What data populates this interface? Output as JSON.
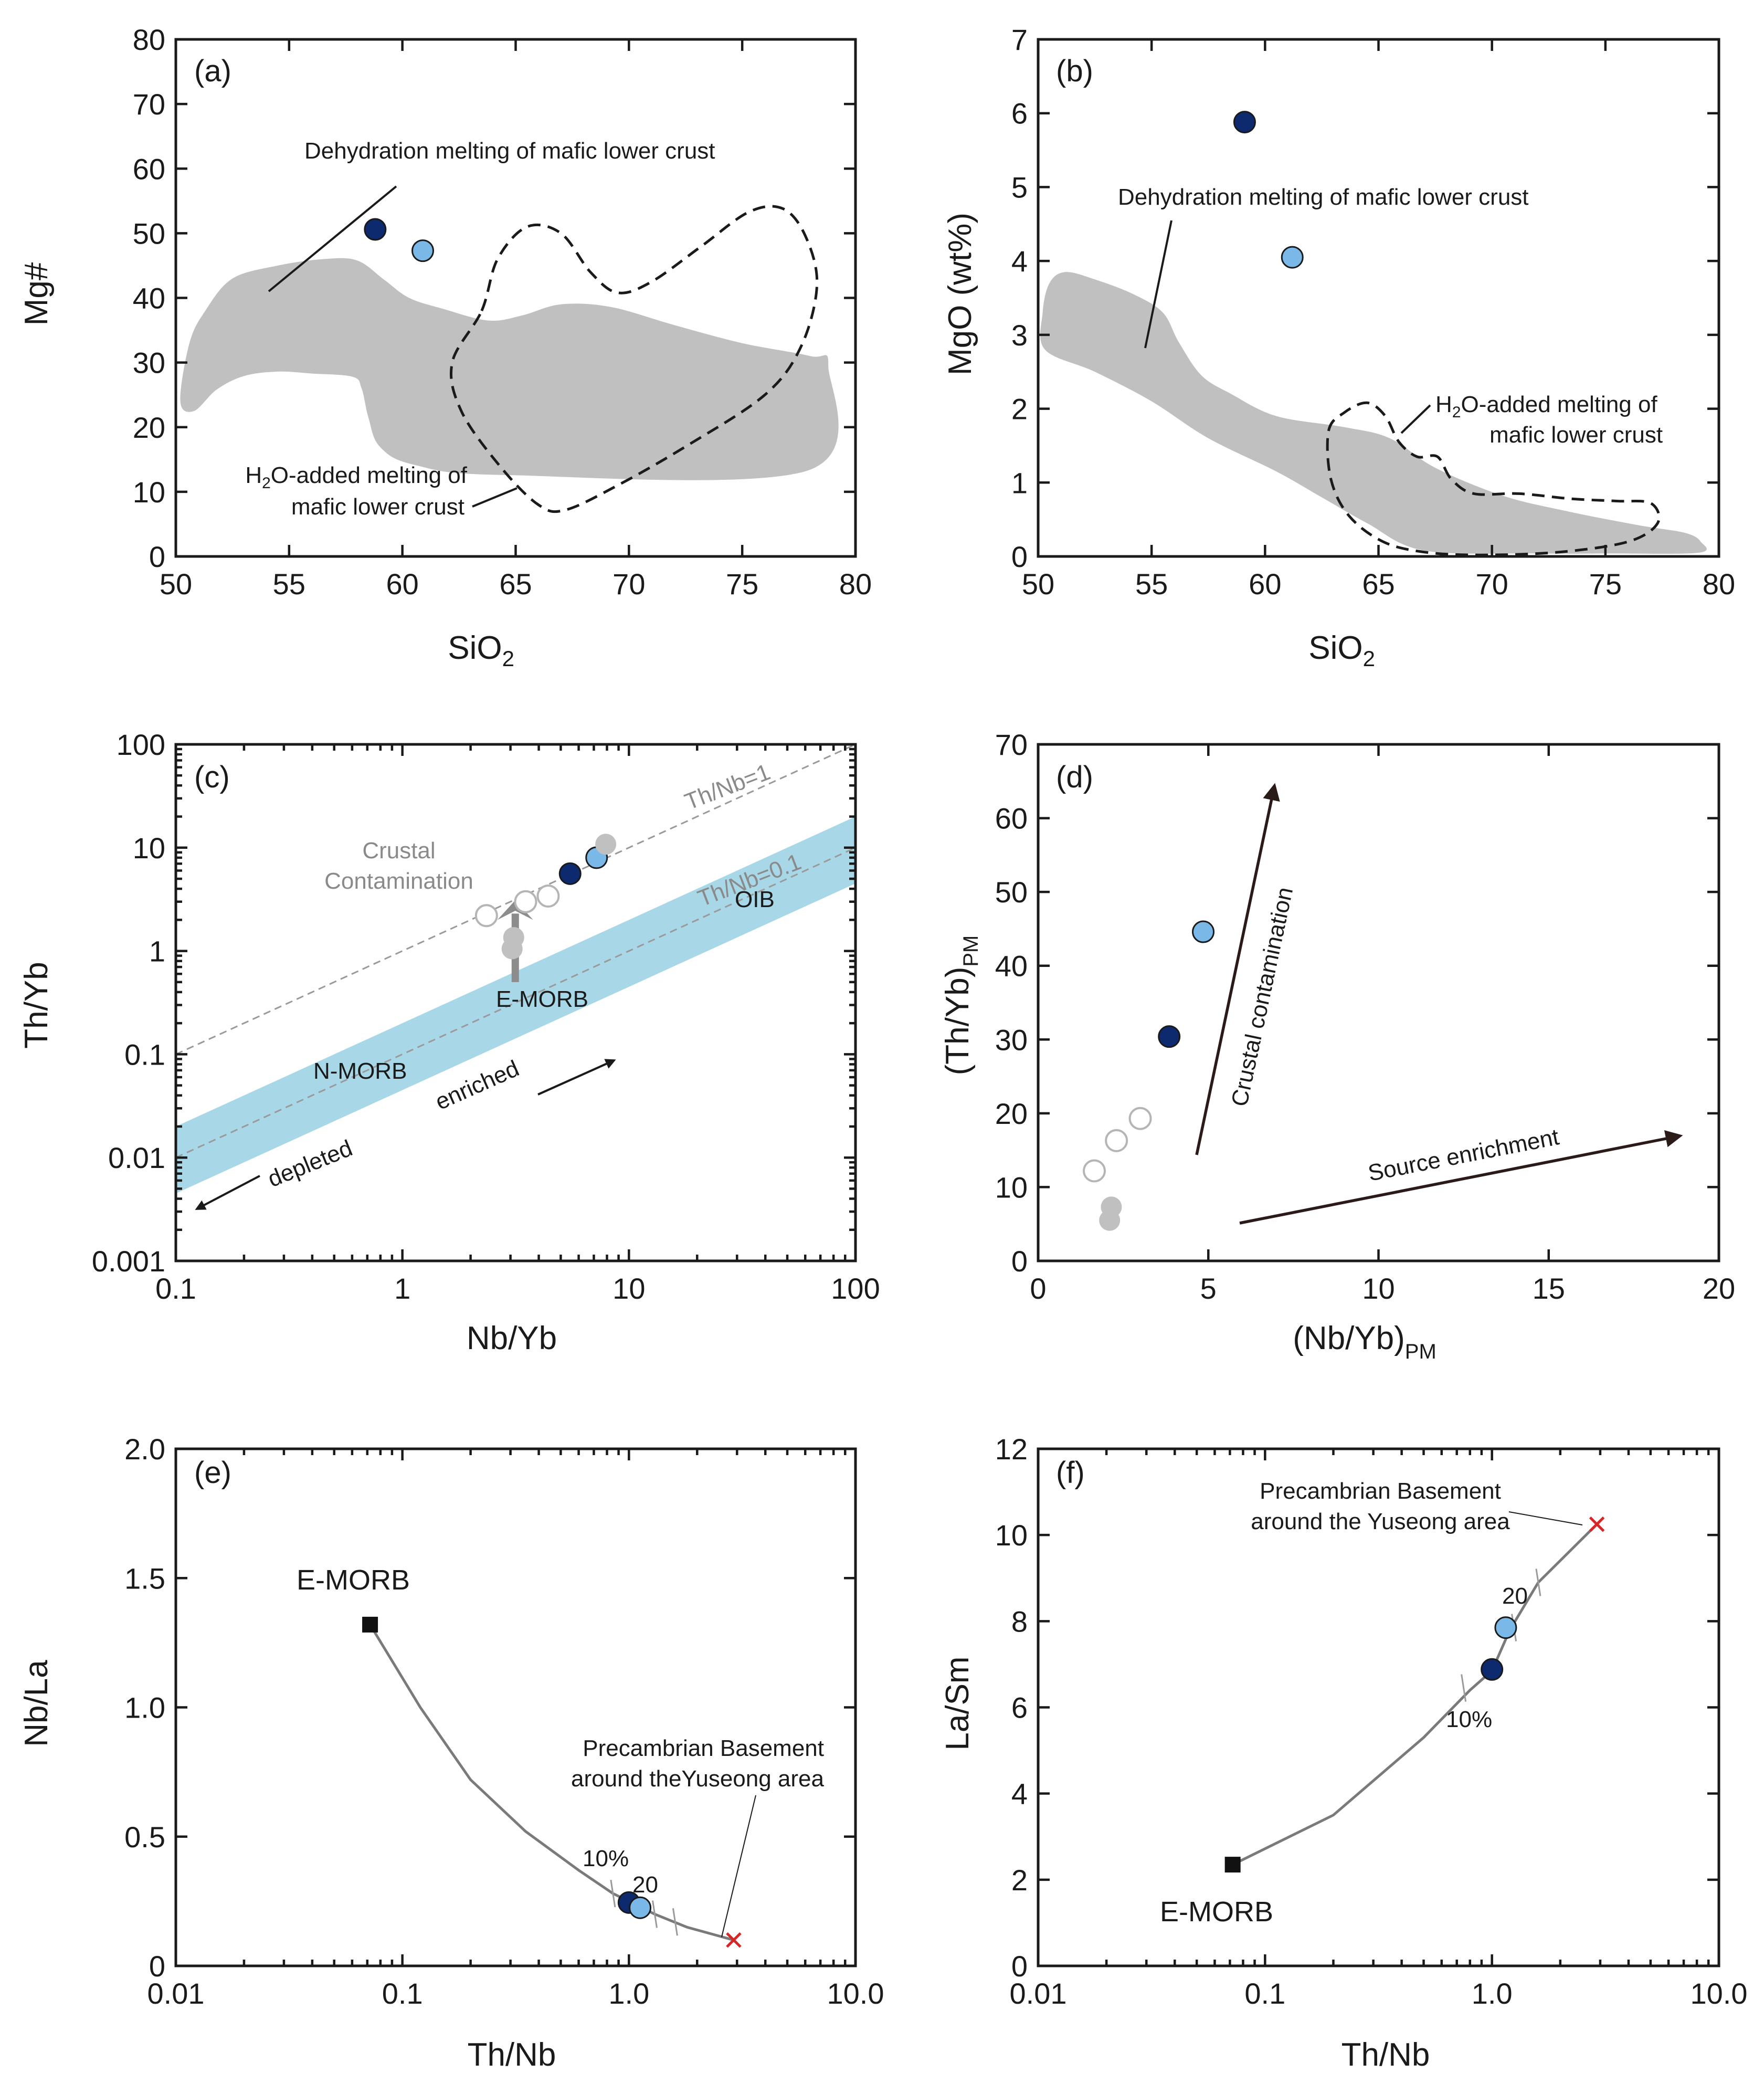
{
  "colors": {
    "sample_dark": "#0d2a6e",
    "sample_light": "#7ab8e8",
    "reference_gray": "#c0c0c0",
    "reference_open": "#ffffff",
    "ocean_band": "#a8d8e8",
    "endmember_x": "#d62728",
    "arrow": "#2a1a18"
  },
  "chart_data": [
    {
      "id": "a",
      "type": "scatter",
      "label": "(a)",
      "xlabel": "SiO₂",
      "ylabel": "Mg#",
      "xlim": [
        50,
        80
      ],
      "ylim": [
        0,
        80
      ],
      "xticks": [
        50,
        55,
        60,
        65,
        70,
        75,
        80
      ],
      "yticks": [
        0,
        10,
        20,
        30,
        40,
        50,
        60,
        70,
        80
      ],
      "points": [
        {
          "x": 58.8,
          "y": 50.6,
          "color": "dark"
        },
        {
          "x": 60.9,
          "y": 47.3,
          "color": "light"
        }
      ],
      "fields": [
        {
          "name": "Dehydration melting of mafic lower crust",
          "style": "filled",
          "polygon": [
            [
              50.2,
              24
            ],
            [
              50.6,
              33
            ],
            [
              51.3,
              38
            ],
            [
              52.5,
              43
            ],
            [
              54.5,
              45
            ],
            [
              56.5,
              46
            ],
            [
              58,
              45.8
            ],
            [
              59.2,
              42.8
            ],
            [
              60.3,
              40
            ],
            [
              61.8,
              38.3
            ],
            [
              63.8,
              36.5
            ],
            [
              65.3,
              37.3
            ],
            [
              67,
              39
            ],
            [
              69.2,
              38.6
            ],
            [
              72,
              35.8
            ],
            [
              75,
              33
            ],
            [
              78,
              31
            ],
            [
              78.8,
              29.5
            ],
            [
              77.9,
              13.3
            ],
            [
              64.5,
              12.6
            ],
            [
              60.5,
              14.2
            ],
            [
              59,
              17
            ],
            [
              58.5,
              21.5
            ],
            [
              58.2,
              26
            ],
            [
              57.8,
              27.8
            ],
            [
              56,
              28.3
            ],
            [
              54.5,
              28.6
            ],
            [
              53,
              27.9
            ],
            [
              51.8,
              25.8
            ],
            [
              50.8,
              22.5
            ]
          ]
        },
        {
          "name": "H₂O-added melting of mafic lower crust",
          "style": "dashed",
          "polygon": [
            [
              63.5,
              38
            ],
            [
              64.2,
              46
            ],
            [
              65.5,
              51
            ],
            [
              67,
              50
            ],
            [
              68.3,
              44
            ],
            [
              69.5,
              40.8
            ],
            [
              71,
              42.5
            ],
            [
              73.2,
              48
            ],
            [
              75.3,
              53.3
            ],
            [
              76.8,
              53.8
            ],
            [
              77.8,
              49.5
            ],
            [
              78.3,
              42
            ],
            [
              77.6,
              32.5
            ],
            [
              76,
              25
            ],
            [
              72.5,
              17
            ],
            [
              69.5,
              11
            ],
            [
              67.2,
              7.2
            ],
            [
              66,
              8
            ],
            [
              64.3,
              14
            ],
            [
              62.6,
              22.5
            ],
            [
              62.2,
              30
            ]
          ]
        }
      ],
      "annotations": [
        {
          "text": "Dehydration melting of mafic lower crust"
        },
        {
          "text": "H₂O-added melting of"
        },
        {
          "text": "mafic lower crust"
        }
      ]
    },
    {
      "id": "b",
      "type": "scatter",
      "label": "(b)",
      "xlabel": "SiO₂",
      "ylabel": "MgO (wt%)",
      "xlim": [
        50,
        80
      ],
      "ylim": [
        0,
        7
      ],
      "xticks": [
        50,
        55,
        60,
        65,
        70,
        75,
        80
      ],
      "yticks": [
        0,
        1,
        2,
        3,
        4,
        5,
        6,
        7
      ],
      "points": [
        {
          "x": 59.1,
          "y": 5.88,
          "color": "dark"
        },
        {
          "x": 61.2,
          "y": 4.05,
          "color": "light"
        }
      ],
      "fields": [
        {
          "name": "Dehydration melting of mafic lower crust",
          "style": "filled",
          "polygon": [
            [
              50.3,
              2.8
            ],
            [
              50.2,
              3.3
            ],
            [
              50.5,
              3.7
            ],
            [
              51.2,
              3.85
            ],
            [
              52.5,
              3.75
            ],
            [
              54.2,
              3.55
            ],
            [
              55.5,
              3.3
            ],
            [
              56.2,
              2.9
            ],
            [
              57.2,
              2.45
            ],
            [
              58.5,
              2.2
            ],
            [
              60.5,
              1.9
            ],
            [
              63.5,
              1.75
            ],
            [
              65.5,
              1.6
            ],
            [
              67.5,
              1.2
            ],
            [
              70.5,
              0.82
            ],
            [
              73.5,
              0.6
            ],
            [
              76.5,
              0.42
            ],
            [
              78.5,
              0.32
            ],
            [
              79.2,
              0.2
            ],
            [
              79.1,
              0.05
            ],
            [
              75,
              0.04
            ],
            [
              72,
              0.04
            ],
            [
              67,
              0.08
            ],
            [
              64.5,
              0.45
            ],
            [
              62.5,
              0.8
            ],
            [
              60.5,
              1.15
            ],
            [
              57.5,
              1.6
            ],
            [
              55,
              2.1
            ],
            [
              52.5,
              2.5
            ]
          ]
        },
        {
          "name": "H₂O-added melting of mafic lower crust",
          "style": "dashed",
          "polygon": [
            [
              62.8,
              1.7
            ],
            [
              63.5,
              1.95
            ],
            [
              64.5,
              2.08
            ],
            [
              65.3,
              1.9
            ],
            [
              65.9,
              1.55
            ],
            [
              66.7,
              1.35
            ],
            [
              67.6,
              1.35
            ],
            [
              68.2,
              1.05
            ],
            [
              69.2,
              0.85
            ],
            [
              71.2,
              0.85
            ],
            [
              73.5,
              0.78
            ],
            [
              75.5,
              0.75
            ],
            [
              77,
              0.72
            ],
            [
              77.3,
              0.45
            ],
            [
              76,
              0.2
            ],
            [
              73,
              0.06
            ],
            [
              69.5,
              0.02
            ],
            [
              67,
              0.06
            ],
            [
              65.2,
              0.2
            ],
            [
              63.7,
              0.55
            ],
            [
              62.9,
              1.05
            ]
          ]
        }
      ],
      "annotations": [
        {
          "text": "Dehydration melting of mafic lower crust"
        },
        {
          "text": "H₂O-added melting of"
        },
        {
          "text": "mafic lower crust"
        }
      ]
    },
    {
      "id": "c",
      "type": "scatter",
      "label": "(c)",
      "xlabel": "Nb/Yb",
      "ylabel": "Th/Yb",
      "xscale": "log",
      "yscale": "log",
      "xlim": [
        0.1,
        100
      ],
      "ylim": [
        0.001,
        100
      ],
      "xticks": [
        0.1,
        1,
        10,
        100
      ],
      "xticklabels": [
        "0.1",
        "1",
        "10",
        "100"
      ],
      "yticks": [
        0.001,
        0.01,
        0.1,
        1,
        10,
        100
      ],
      "yticklabels": [
        "0.001",
        "0.01",
        "0.1",
        "1",
        "10",
        "100"
      ],
      "points": [
        {
          "x": 5.5,
          "y": 5.6,
          "color": "dark"
        },
        {
          "x": 7.2,
          "y": 8.0,
          "color": "light"
        },
        {
          "x": 7.9,
          "y": 10.8,
          "color": "gray"
        },
        {
          "x": 3.1,
          "y": 1.35,
          "color": "gray"
        },
        {
          "x": 3.05,
          "y": 1.05,
          "color": "gray"
        },
        {
          "x": 2.35,
          "y": 2.2,
          "color": "open"
        },
        {
          "x": 3.5,
          "y": 3.0,
          "color": "open"
        },
        {
          "x": 4.4,
          "y": 3.4,
          "color": "open"
        }
      ],
      "reference_lines": [
        {
          "label": "Th/Nb=1",
          "ratio": 1
        },
        {
          "label": "Th/Nb=0.1",
          "ratio": 0.1
        }
      ],
      "mantle_array": {
        "lower_ratio": 0.045,
        "upper_ratio": 0.2
      },
      "annotations": [
        {
          "text": "Crustal"
        },
        {
          "text": "Contamination"
        },
        {
          "text": "OIB"
        },
        {
          "text": "E-MORB"
        },
        {
          "text": "N-MORB"
        },
        {
          "text": "enriched"
        },
        {
          "text": "depleted"
        }
      ]
    },
    {
      "id": "d",
      "type": "scatter",
      "label": "(d)",
      "xlabel": "(Nb/Yb)",
      "xlabel_sub": "PM",
      "ylabel": "(Th/Yb)",
      "ylabel_sub": "PM",
      "xlim": [
        0,
        20
      ],
      "ylim": [
        0,
        70
      ],
      "xticks": [
        0,
        5,
        10,
        15,
        20
      ],
      "yticks": [
        0,
        10,
        20,
        30,
        40,
        50,
        60,
        70
      ],
      "points": [
        {
          "x": 3.85,
          "y": 30.4,
          "color": "dark"
        },
        {
          "x": 4.85,
          "y": 44.6,
          "color": "light"
        },
        {
          "x": 1.65,
          "y": 12.2,
          "color": "open"
        },
        {
          "x": 2.3,
          "y": 16.3,
          "color": "open"
        },
        {
          "x": 3.0,
          "y": 19.3,
          "color": "open"
        },
        {
          "x": 2.15,
          "y": 7.3,
          "color": "gray"
        },
        {
          "x": 2.1,
          "y": 5.5,
          "color": "gray"
        }
      ],
      "annotations": [
        {
          "text": "Crustal contamination"
        },
        {
          "text": "Source enrichment"
        }
      ]
    },
    {
      "id": "e",
      "type": "line",
      "label": "(e)",
      "xlabel": "Th/Nb",
      "ylabel": "Nb/La",
      "xscale": "log",
      "xlim": [
        0.01,
        10
      ],
      "ylim": [
        0,
        2.0
      ],
      "xticks": [
        0.01,
        0.1,
        1,
        10
      ],
      "xticklabels": [
        "0.01",
        "0.1",
        "1.0",
        "10.0"
      ],
      "yticks": [
        0,
        0.5,
        1.0,
        1.5,
        2.0
      ],
      "yticklabels": [
        "0",
        "0.5",
        "1.0",
        "1.5",
        "2.0"
      ],
      "mixing_curve": [
        [
          0.072,
          1.32
        ],
        [
          0.12,
          1.0
        ],
        [
          0.2,
          0.72
        ],
        [
          0.35,
          0.52
        ],
        [
          0.6,
          0.37
        ],
        [
          0.85,
          0.28
        ],
        [
          1.0,
          0.25
        ],
        [
          1.3,
          0.2
        ],
        [
          1.8,
          0.15
        ],
        [
          2.9,
          0.1
        ]
      ],
      "mixing_ticks": [
        [
          0.85,
          0.28
        ],
        [
          1.3,
          0.2
        ],
        [
          1.6,
          0.17
        ]
      ],
      "endmembers": [
        {
          "name": "E-MORB",
          "x": 0.072,
          "y": 1.32,
          "marker": "square"
        },
        {
          "name": "Precambrian Basement around theYuseong area",
          "x": 2.9,
          "y": 0.1,
          "marker": "x"
        }
      ],
      "points": [
        {
          "x": 1.0,
          "y": 0.245,
          "color": "dark"
        },
        {
          "x": 1.12,
          "y": 0.225,
          "color": "light"
        }
      ],
      "annotations": [
        {
          "text": "E-MORB"
        },
        {
          "text": "10%"
        },
        {
          "text": "20"
        },
        {
          "text": "Precambrian Basement"
        },
        {
          "text": "around theYuseong area"
        }
      ]
    },
    {
      "id": "f",
      "type": "line",
      "label": "(f)",
      "xlabel": "Th/Nb",
      "ylabel": "La/Sm",
      "xscale": "log",
      "xlim": [
        0.01,
        10
      ],
      "ylim": [
        0,
        12
      ],
      "xticks": [
        0.01,
        0.1,
        1,
        10
      ],
      "xticklabels": [
        "0.01",
        "0.1",
        "1.0",
        "10.0"
      ],
      "yticks": [
        0,
        2,
        4,
        6,
        8,
        10,
        12
      ],
      "mixing_curve": [
        [
          0.072,
          2.35
        ],
        [
          0.2,
          3.5
        ],
        [
          0.5,
          5.3
        ],
        [
          0.8,
          6.4
        ],
        [
          1.0,
          6.85
        ],
        [
          1.2,
          7.8
        ],
        [
          1.6,
          8.9
        ],
        [
          2.9,
          10.25
        ]
      ],
      "mixing_ticks": [
        [
          0.75,
          6.45
        ],
        [
          1.25,
          7.85
        ],
        [
          1.6,
          8.9
        ]
      ],
      "endmembers": [
        {
          "name": "E-MORB",
          "x": 0.072,
          "y": 2.35,
          "marker": "square"
        },
        {
          "name": "Precambrian Basement around the Yuseong area",
          "x": 2.9,
          "y": 10.25,
          "marker": "x"
        }
      ],
      "points": [
        {
          "x": 1.0,
          "y": 6.88,
          "color": "dark"
        },
        {
          "x": 1.15,
          "y": 7.85,
          "color": "light"
        }
      ],
      "annotations": [
        {
          "text": "Precambrian Basement"
        },
        {
          "text": "around the Yuseong area"
        },
        {
          "text": "20"
        },
        {
          "text": "10%"
        },
        {
          "text": "E-MORB"
        }
      ]
    }
  ]
}
